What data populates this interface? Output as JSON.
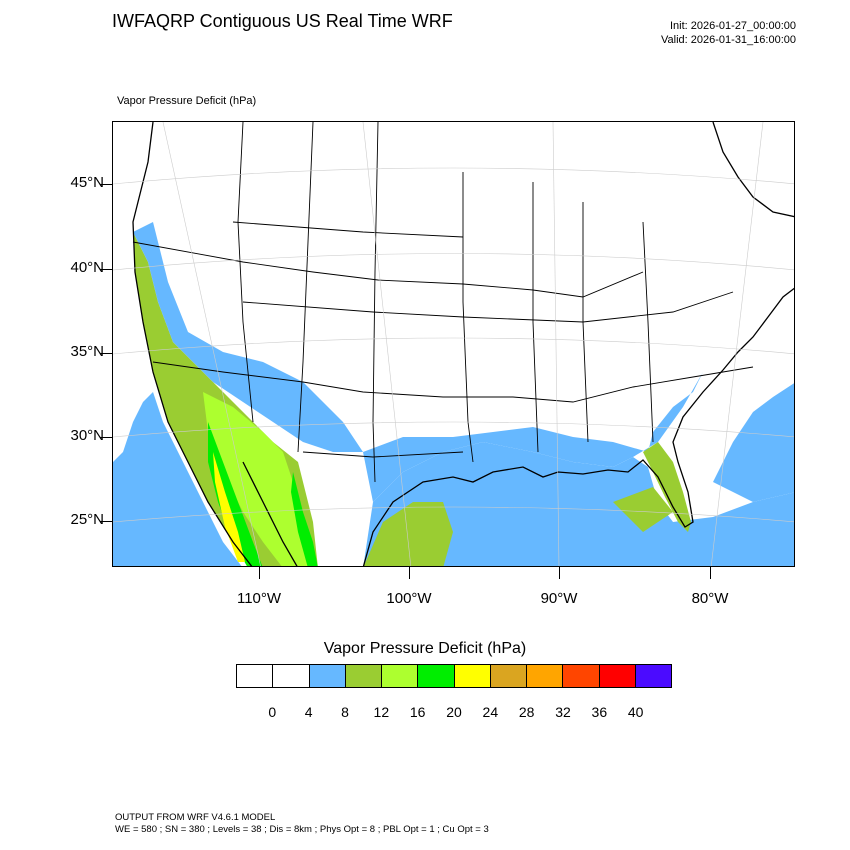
{
  "header": {
    "title": "IWFAQRP Contiguous US Real Time WRF",
    "init": "Init: 2026-01-27_00:00:00",
    "valid": "Valid: 2026-01-31_16:00:00"
  },
  "map": {
    "field_label": "Vapor Pressure Deficit   (hPa)",
    "lat_labels": [
      "45°N",
      "40°N",
      "35°N",
      "30°N",
      "25°N"
    ],
    "lon_labels": [
      "110°W",
      "100°W",
      "90°W",
      "80°W"
    ],
    "land_color": "#ffffff",
    "border_color": "#000000"
  },
  "colorbar": {
    "title": "Vapor Pressure Deficit  (hPa)",
    "colors": [
      "#ffffff",
      "#ffffff",
      "#66b8ff",
      "#9acd32",
      "#adff2f",
      "#00ee00",
      "#ffff00",
      "#daa520",
      "#ffa500",
      "#ff4500",
      "#ff0000",
      "#4b0bff"
    ],
    "labels": [
      "0",
      "4",
      "8",
      "12",
      "16",
      "20",
      "24",
      "28",
      "32",
      "36",
      "40"
    ]
  },
  "footer": {
    "line1": "OUTPUT FROM WRF V4.6.1 MODEL",
    "line2": "WE = 580 ; SN = 380 ; Levels = 38 ; Dis = 8km ; Phys Opt = 8 ; PBL Opt = 1 ; Cu Opt = 3"
  }
}
